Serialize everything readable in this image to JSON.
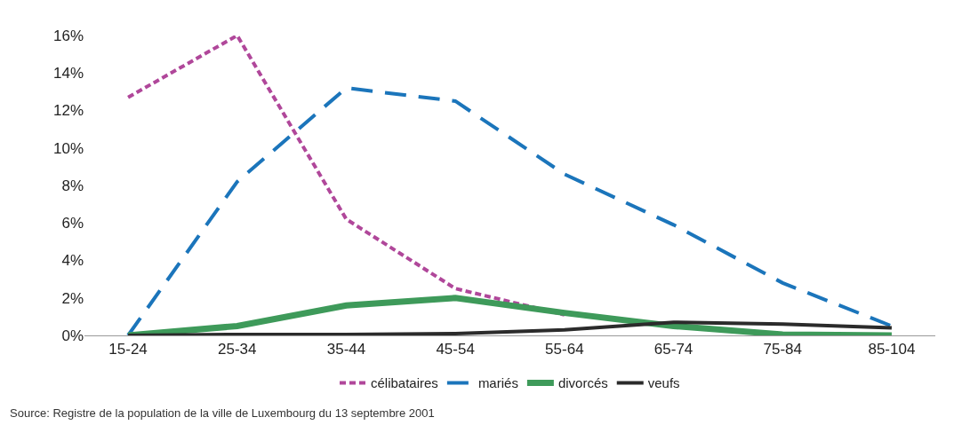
{
  "chart_data": {
    "type": "line",
    "categories": [
      "15-24",
      "25-34",
      "35-44",
      "45-54",
      "55-64",
      "65-74",
      "75-84",
      "85-104"
    ],
    "series": [
      {
        "name": "célibataires",
        "color": "#b0479a",
        "line_style": "dotted",
        "values": [
          12.7,
          16,
          6.2,
          2.5,
          1.1,
          null,
          null,
          null
        ]
      },
      {
        "name": "mariés",
        "color": "#1b75bb",
        "line_style": "dashed",
        "values": [
          0,
          8.2,
          13.2,
          12.5,
          8.6,
          5.9,
          2.8,
          0.5
        ]
      },
      {
        "name": "divorcés",
        "color": "#3e9a5a",
        "line_style": "solid",
        "values": [
          0,
          0.5,
          1.6,
          2.0,
          1.2,
          0.5,
          0.05,
          0
        ]
      },
      {
        "name": "veufs",
        "color": "#2b2b2b",
        "line_style": "solid",
        "values": [
          0,
          0.05,
          0.05,
          0.1,
          0.3,
          0.7,
          0.6,
          0.4
        ]
      }
    ],
    "ylim": [
      0,
      16
    ],
    "yticks": [
      {
        "value": 0,
        "label": "0%"
      },
      {
        "value": 2,
        "label": "2%"
      },
      {
        "value": 4,
        "label": "4%"
      },
      {
        "value": 6,
        "label": "6%"
      },
      {
        "value": 8,
        "label": "8%"
      },
      {
        "value": 10,
        "label": "10%"
      },
      {
        "value": 12,
        "label": "12%"
      },
      {
        "value": 14,
        "label": "14%"
      },
      {
        "value": 16,
        "label": "16%"
      }
    ],
    "grid": false,
    "legend": "bottom",
    "marker": "none",
    "annotations": [
      "Source: Registre de la population de la ville de Luxembourg du 13 septembre 2001"
    ]
  }
}
